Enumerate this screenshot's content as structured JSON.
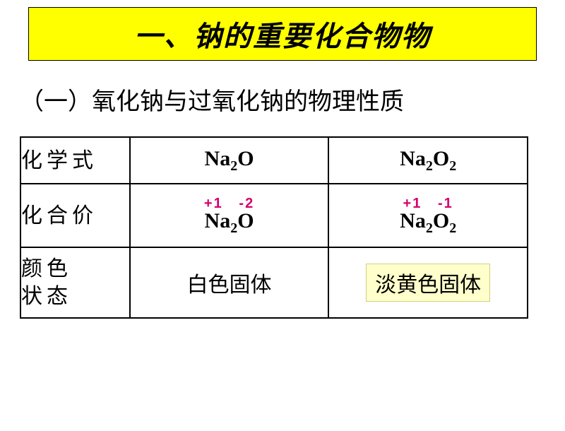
{
  "title": "一、钠的重要化合物物",
  "subtitle": "（一）氧化钠与过氧化钠的物理性质",
  "rowHeaders": {
    "formula": "化学式",
    "valence": "化合价",
    "state": "颜色\n状态"
  },
  "col1": {
    "formula_na": "Na",
    "formula_sub1": "2",
    "formula_o": "O",
    "ox_na": "+1",
    "ox_o": "-2",
    "state": "白色固体"
  },
  "col2": {
    "formula_na": "Na",
    "formula_sub1": "2",
    "formula_o": "O",
    "formula_sub2": "2",
    "ox_na": "+1",
    "ox_o": "-1",
    "state": "淡黄色固体"
  },
  "colors": {
    "banner_bg": "#ffff00",
    "highlight_bg": "#ffffcc",
    "oxidation_color": "#d6006c",
    "border": "#000000"
  }
}
